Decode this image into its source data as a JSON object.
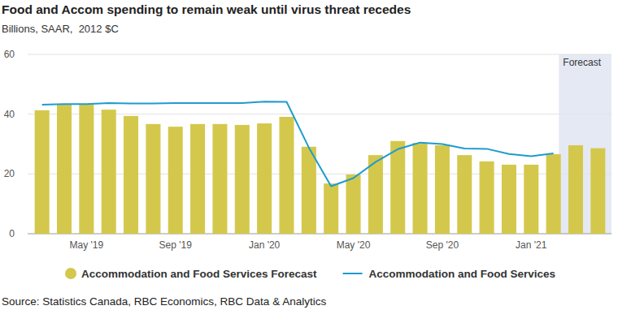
{
  "chart_data": {
    "type": "bar",
    "title": "Food and Accom spending to remain weak until virus threat recedes",
    "subtitle": "Billions, SAAR,  2012 $C",
    "source": "Source: Statistics Canada, RBC Economics, RBC Data & Analytics",
    "annotations": [
      {
        "text": "Forecast"
      }
    ],
    "categories": [
      null,
      null,
      "May '19",
      null,
      null,
      null,
      "Sep '19",
      null,
      null,
      null,
      "Jan '20",
      null,
      null,
      null,
      "May '20",
      null,
      null,
      null,
      "Sep '20",
      null,
      null,
      null,
      "Jan '21",
      null,
      null,
      null
    ],
    "series": [
      {
        "name": "Accommodation and Food Services Forecast",
        "type": "bar",
        "color": "#d4c84c",
        "values": [
          41.3,
          43.2,
          43.2,
          41.5,
          39.4,
          36.7,
          35.8,
          36.7,
          36.7,
          36.4,
          36.9,
          39.1,
          29.1,
          16.8,
          19.8,
          26.3,
          31.0,
          30.4,
          29.6,
          26.3,
          24.2,
          23.1,
          23.1,
          26.6,
          29.6,
          28.6
        ]
      },
      {
        "name": "Accommodation and Food Services",
        "type": "line",
        "color": "#1e9bd0",
        "values": [
          43.2,
          43.4,
          43.4,
          43.7,
          43.6,
          43.6,
          43.7,
          43.7,
          43.7,
          43.7,
          44.2,
          44.1,
          28.8,
          15.9,
          18.6,
          24.0,
          28.3,
          30.5,
          30.0,
          28.5,
          28.4,
          26.7,
          25.9,
          26.9,
          null,
          null
        ]
      }
    ],
    "ylim": [
      0,
      60
    ],
    "yticks": [
      0,
      20,
      40,
      60
    ],
    "grid": true,
    "legend": "bottom"
  }
}
